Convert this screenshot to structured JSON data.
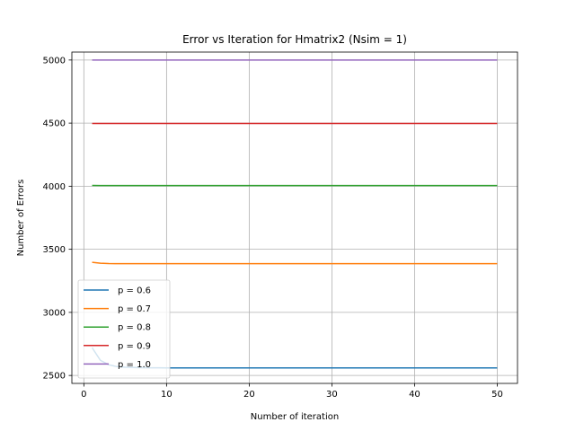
{
  "chart_data": {
    "type": "line",
    "title": "Error vs Iteration for Hmatrix2 (Nsim = 1)",
    "xlabel": "Number of iteration",
    "ylabel": "Number of Errors",
    "xlim": [
      -1.45,
      52.45
    ],
    "ylim": [
      2437,
      5063
    ],
    "xticks": [
      0,
      10,
      20,
      30,
      40,
      50
    ],
    "yticks": [
      2500,
      3000,
      3500,
      4000,
      4500,
      5000
    ],
    "grid": true,
    "legend_position": "lower-left",
    "series": [
      {
        "name": "p = 0.6",
        "color": "#1f77b4",
        "x": [
          1,
          2,
          3,
          4,
          5,
          6,
          7,
          8,
          9,
          10,
          15,
          20,
          30,
          40,
          50
        ],
        "y": [
          2720,
          2620,
          2585,
          2570,
          2565,
          2563,
          2562,
          2561,
          2561,
          2560,
          2560,
          2560,
          2560,
          2560,
          2560
        ]
      },
      {
        "name": "p = 0.7",
        "color": "#ff7f0e",
        "x": [
          1,
          2,
          3,
          4,
          5,
          10,
          20,
          30,
          40,
          50
        ],
        "y": [
          3397,
          3390,
          3387,
          3386,
          3386,
          3386,
          3386,
          3386,
          3386,
          3386
        ]
      },
      {
        "name": "p = 0.8",
        "color": "#2ca02c",
        "x": [
          1,
          2,
          5,
          10,
          20,
          30,
          40,
          50
        ],
        "y": [
          4006,
          4005,
          4005,
          4005,
          4005,
          4005,
          4005,
          4005
        ]
      },
      {
        "name": "p = 0.9",
        "color": "#d62728",
        "x": [
          1,
          10,
          20,
          30,
          40,
          50
        ],
        "y": [
          4497,
          4497,
          4497,
          4497,
          4497,
          4497
        ]
      },
      {
        "name": "p = 1.0",
        "color": "#9467bd",
        "x": [
          1,
          10,
          20,
          30,
          40,
          50
        ],
        "y": [
          5000,
          5000,
          5000,
          5000,
          5000,
          5000
        ]
      }
    ]
  }
}
